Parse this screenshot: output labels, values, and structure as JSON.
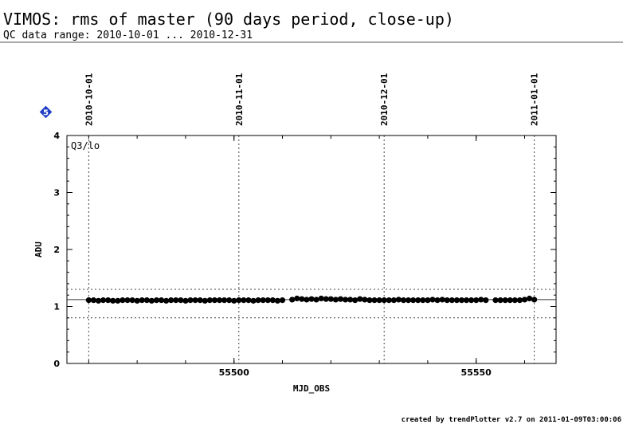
{
  "header": {
    "title": "VIMOS: rms of master (90 days period, close-up)",
    "subtitle": "QC data range: 2010-10-01 ... 2010-12-31"
  },
  "badge": {
    "label": "5",
    "color": "#1e3cc8"
  },
  "footer": {
    "credit": "created by trendPlotter v2.7 on 2011-01-09T03:00:06"
  },
  "chart_data": {
    "type": "scatter",
    "panel_label": "Q3/lo",
    "xlabel": "MJD_OBS",
    "ylabel": "ADU",
    "xlim": [
      55465.5,
      55566.5
    ],
    "ylim": [
      0,
      4
    ],
    "x_ticks": [
      55500,
      55550
    ],
    "y_ticks": [
      0,
      1,
      2,
      3,
      4
    ],
    "date_markers": [
      {
        "label": "2010-10-01",
        "mjd": 55470
      },
      {
        "label": "2010-11-01",
        "mjd": 55501
      },
      {
        "label": "2010-12-01",
        "mjd": 55531
      },
      {
        "label": "2011-01-01",
        "mjd": 55562
      }
    ],
    "reference_line": 1.12,
    "threshold_lines": [
      0.8,
      1.3
    ],
    "point_color": "#000000",
    "series": [
      {
        "x": [
          55470,
          55471,
          55472,
          55473,
          55474,
          55475,
          55476,
          55477,
          55478,
          55479,
          55480,
          55481,
          55482,
          55483,
          55484,
          55485,
          55486,
          55487,
          55488,
          55489,
          55490,
          55491,
          55492,
          55493,
          55494,
          55495,
          55496,
          55497,
          55498,
          55499,
          55500,
          55501,
          55502,
          55503,
          55504,
          55505,
          55506,
          55507,
          55508,
          55509,
          55510,
          55512,
          55513,
          55514,
          55515,
          55516,
          55517,
          55518,
          55519,
          55520,
          55521,
          55522,
          55523,
          55524,
          55525,
          55526,
          55527,
          55528,
          55529,
          55530,
          55531,
          55532,
          55533,
          55534,
          55535,
          55536,
          55537,
          55538,
          55539,
          55540,
          55541,
          55542,
          55543,
          55544,
          55545,
          55546,
          55547,
          55548,
          55549,
          55550,
          55551,
          55552,
          55554,
          55555,
          55556,
          55557,
          55558,
          55559,
          55560,
          55561,
          55562
        ],
        "y": [
          1.11,
          1.11,
          1.1,
          1.11,
          1.11,
          1.1,
          1.1,
          1.11,
          1.11,
          1.11,
          1.1,
          1.11,
          1.11,
          1.1,
          1.11,
          1.11,
          1.1,
          1.11,
          1.11,
          1.11,
          1.1,
          1.11,
          1.11,
          1.11,
          1.1,
          1.11,
          1.11,
          1.11,
          1.11,
          1.11,
          1.1,
          1.11,
          1.11,
          1.11,
          1.1,
          1.11,
          1.11,
          1.11,
          1.11,
          1.1,
          1.11,
          1.12,
          1.14,
          1.13,
          1.12,
          1.13,
          1.12,
          1.14,
          1.13,
          1.13,
          1.12,
          1.13,
          1.12,
          1.12,
          1.11,
          1.13,
          1.12,
          1.11,
          1.11,
          1.11,
          1.11,
          1.11,
          1.11,
          1.12,
          1.11,
          1.11,
          1.11,
          1.11,
          1.11,
          1.11,
          1.12,
          1.11,
          1.12,
          1.11,
          1.11,
          1.11,
          1.11,
          1.11,
          1.11,
          1.11,
          1.12,
          1.11,
          1.11,
          1.11,
          1.11,
          1.11,
          1.11,
          1.11,
          1.12,
          1.14,
          1.12
        ]
      }
    ]
  }
}
